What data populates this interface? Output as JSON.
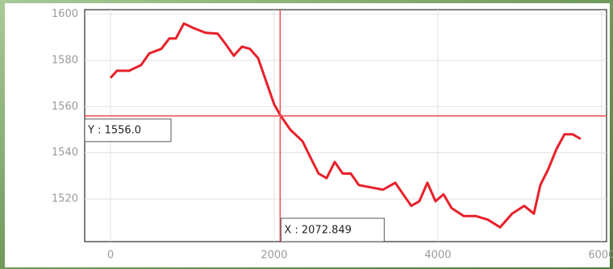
{
  "chart_data": {
    "type": "line",
    "series": [
      {
        "color": "#e8202a",
        "x": [
          0,
          79,
          227,
          374,
          473,
          621,
          719,
          798,
          897,
          1015,
          1163,
          1310,
          1409,
          1507,
          1606,
          1704,
          1803,
          1901,
          2000,
          2079,
          2197,
          2345,
          2443,
          2542,
          2640,
          2739,
          2837,
          2936,
          3034,
          3182,
          3330,
          3478,
          3576,
          3675,
          3773,
          3872,
          3970,
          4069,
          4167,
          4315,
          4463,
          4611,
          4759,
          4906,
          5054,
          5172,
          5251,
          5350,
          5448,
          5547,
          5645,
          5744
        ],
        "values": [
          1572.4,
          1575.5,
          1575.5,
          1578,
          1583,
          1585,
          1589.5,
          1589.5,
          1596,
          1594,
          1592,
          1591.6,
          1587,
          1582,
          1586,
          1585,
          1581,
          1571,
          1561,
          1556,
          1550,
          1545,
          1538,
          1531,
          1529,
          1536,
          1531,
          1531,
          1526,
          1525,
          1524,
          1527,
          1522,
          1517,
          1519,
          1527,
          1519,
          1522,
          1516,
          1512.6,
          1512.6,
          1511,
          1507.7,
          1513.6,
          1517,
          1513.6,
          1526,
          1533,
          1541.6,
          1548,
          1548,
          1546
        ]
      }
    ],
    "xlim": [
      -315,
      6060
    ],
    "ylim": [
      1501.5,
      1602
    ],
    "xticks": [
      0,
      2000,
      4000,
      6000
    ],
    "yticks": [
      1520,
      1540,
      1560,
      1580,
      1600
    ],
    "grid": true,
    "cursor": {
      "x": 2072.849,
      "y": 1556.0,
      "x_label": "X : 2072.849",
      "y_label": "Y : 1556.0",
      "color": "#f04a50"
    }
  }
}
